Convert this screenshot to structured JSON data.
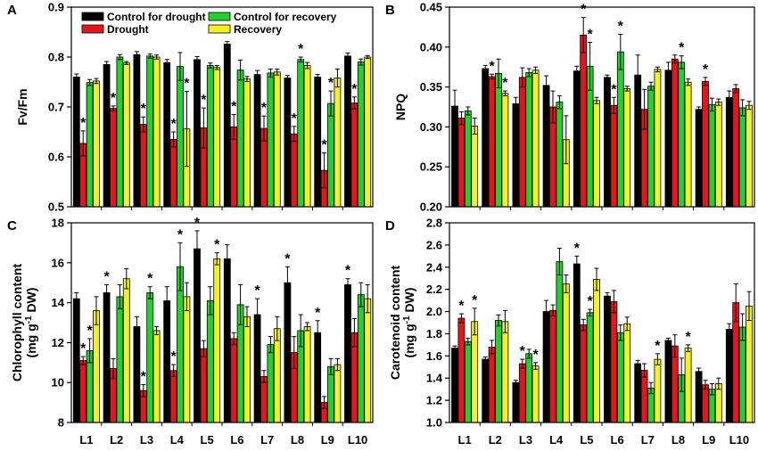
{
  "legend_position": "top-left of panel A",
  "colors": {
    "control_drought": "#000000",
    "drought": "#e8141b",
    "control_recovery": "#22d12b",
    "recovery": "#f5f020"
  },
  "chart_data": [
    {
      "type": "bar",
      "panel": "A",
      "ylabel": "Fv/Fm",
      "ylim": [
        0.5,
        0.9
      ],
      "yticks": [
        "0.5",
        "0.6",
        "0.7",
        "0.8",
        "0.9"
      ],
      "categories": [
        "L1",
        "L2",
        "L3",
        "L4",
        "L5",
        "L6",
        "L7",
        "L8",
        "L9",
        "L10"
      ],
      "show_x_labels": false,
      "legend": [
        "Control for drought",
        "Drought",
        "Control for recovery",
        "Recovery"
      ],
      "series": [
        {
          "name": "Control for drought",
          "values": [
            0.76,
            0.785,
            0.805,
            0.789,
            0.795,
            0.826,
            0.765,
            0.758,
            0.76,
            0.802
          ],
          "errors": [
            0.006,
            0.006,
            0.006,
            0.006,
            0.006,
            0.005,
            0.008,
            0.005,
            0.005,
            0.006
          ]
        },
        {
          "name": "Drought",
          "values": [
            0.627,
            0.697,
            0.665,
            0.635,
            0.658,
            0.66,
            0.657,
            0.646,
            0.573,
            0.708
          ],
          "errors": [
            0.025,
            0.005,
            0.015,
            0.015,
            0.04,
            0.025,
            0.025,
            0.015,
            0.035,
            0.012
          ]
        },
        {
          "name": "Control for recovery",
          "values": [
            0.749,
            0.8,
            0.802,
            0.781,
            0.783,
            0.774,
            0.768,
            0.795,
            0.707,
            0.79
          ],
          "errors": [
            0.006,
            0.005,
            0.004,
            0.028,
            0.005,
            0.02,
            0.008,
            0.005,
            0.025,
            0.006
          ]
        },
        {
          "name": "Recovery",
          "values": [
            0.752,
            0.788,
            0.8,
            0.656,
            0.779,
            0.756,
            0.77,
            0.783,
            0.758,
            0.8
          ],
          "errors": [
            0.005,
            0.003,
            0.004,
            0.075,
            0.004,
            0.005,
            0.006,
            0.006,
            0.018,
            0.003
          ]
        }
      ],
      "significance": [
        {
          "category": "L1",
          "series": "Drought",
          "label": "*"
        },
        {
          "category": "L2",
          "series": "Drought",
          "label": "*"
        },
        {
          "category": "L3",
          "series": "Drought",
          "label": "*"
        },
        {
          "category": "L4",
          "series": "Drought",
          "label": "*"
        },
        {
          "category": "L4",
          "series": "Recovery",
          "label": "*"
        },
        {
          "category": "L5",
          "series": "Drought",
          "label": "*"
        },
        {
          "category": "L6",
          "series": "Drought",
          "label": "*"
        },
        {
          "category": "L7",
          "series": "Drought",
          "label": "*"
        },
        {
          "category": "L8",
          "series": "Drought",
          "label": "*"
        },
        {
          "category": "L8",
          "series": "Control for recovery",
          "label": "*"
        },
        {
          "category": "L9",
          "series": "Drought",
          "label": "*"
        },
        {
          "category": "L9",
          "series": "Control for recovery",
          "label": "*"
        },
        {
          "category": "L10",
          "series": "Drought",
          "label": "*"
        }
      ]
    },
    {
      "type": "bar",
      "panel": "B",
      "ylabel": "NPQ",
      "ylim": [
        0.2,
        0.45
      ],
      "yticks": [
        "0.20",
        "0.25",
        "0.30",
        "0.35",
        "0.40",
        "0.45"
      ],
      "categories": [
        "L1",
        "L2",
        "L3",
        "L4",
        "L5",
        "L6",
        "L7",
        "L8",
        "L9",
        "L10"
      ],
      "show_x_labels": false,
      "series": [
        {
          "name": "Control for drought",
          "values": [
            0.326,
            0.373,
            0.329,
            0.352,
            0.37,
            0.362,
            0.365,
            0.371,
            0.322,
            0.337
          ],
          "errors": [
            0.02,
            0.004,
            0.008,
            0.012,
            0.006,
            0.003,
            0.025,
            0.01,
            0.003,
            0.008
          ]
        },
        {
          "name": "Drought",
          "values": [
            0.311,
            0.363,
            0.362,
            0.325,
            0.415,
            0.327,
            0.322,
            0.385,
            0.357,
            0.348
          ],
          "errors": [
            0.008,
            0.003,
            0.012,
            0.02,
            0.022,
            0.01,
            0.025,
            0.005,
            0.005,
            0.005
          ]
        },
        {
          "name": "Control for recovery",
          "values": [
            0.32,
            0.367,
            0.368,
            0.331,
            0.376,
            0.394,
            0.351,
            0.381,
            0.328,
            0.324
          ],
          "errors": [
            0.005,
            0.018,
            0.005,
            0.008,
            0.03,
            0.022,
            0.005,
            0.008,
            0.008,
            0.01
          ]
        },
        {
          "name": "Recovery",
          "values": [
            0.301,
            0.342,
            0.371,
            0.284,
            0.333,
            0.348,
            0.372,
            0.356,
            0.331,
            0.327
          ],
          "errors": [
            0.01,
            0.003,
            0.004,
            0.03,
            0.004,
            0.003,
            0.003,
            0.004,
            0.004,
            0.005
          ]
        }
      ],
      "significance": [
        {
          "category": "L2",
          "series": "Drought",
          "label": "*"
        },
        {
          "category": "L2",
          "series": "Recovery",
          "label": "*"
        },
        {
          "category": "L5",
          "series": "Drought",
          "label": "*"
        },
        {
          "category": "L5",
          "series": "Control for recovery",
          "label": "*"
        },
        {
          "category": "L6",
          "series": "Drought",
          "label": "*"
        },
        {
          "category": "L6",
          "series": "Control for recovery",
          "label": "*"
        },
        {
          "category": "L8",
          "series": "Control for recovery",
          "label": "*"
        },
        {
          "category": "L9",
          "series": "Drought",
          "label": "*"
        }
      ]
    },
    {
      "type": "bar",
      "panel": "C",
      "ylabel": "Chlorophyll content",
      "ylabel_unit": "(mg g-1 DW)",
      "ylabel_unit_parts": [
        "(mg g",
        "-1",
        " DW)"
      ],
      "ylim": [
        8,
        18
      ],
      "yticks": [
        "8",
        "10",
        "12",
        "14",
        "16",
        "18"
      ],
      "categories": [
        "L1",
        "L2",
        "L3",
        "L4",
        "L5",
        "L6",
        "L7",
        "L8",
        "L9",
        "L10"
      ],
      "show_x_labels": true,
      "series": [
        {
          "name": "Control for drought",
          "values": [
            14.2,
            14.5,
            12.8,
            14.1,
            16.7,
            16.2,
            13.4,
            15.0,
            12.5,
            14.9
          ],
          "errors": [
            0.3,
            0.4,
            0.5,
            0.7,
            0.9,
            0.7,
            0.8,
            0.8,
            0.6,
            0.3
          ]
        },
        {
          "name": "Drought",
          "values": [
            11.1,
            10.7,
            9.6,
            10.6,
            11.7,
            12.2,
            10.3,
            11.5,
            9.0,
            12.5
          ],
          "errors": [
            0.2,
            0.5,
            0.3,
            0.3,
            0.4,
            0.3,
            0.3,
            0.8,
            0.3,
            0.7
          ]
        },
        {
          "name": "Control for recovery",
          "values": [
            11.6,
            14.3,
            14.5,
            15.8,
            14.1,
            13.9,
            11.9,
            12.6,
            10.8,
            14.4
          ],
          "errors": [
            0.6,
            0.6,
            0.3,
            1.2,
            0.7,
            1.0,
            0.4,
            0.8,
            0.4,
            0.6
          ]
        },
        {
          "name": "Recovery",
          "values": [
            13.6,
            15.2,
            12.6,
            14.3,
            16.2,
            13.3,
            12.7,
            12.8,
            10.9,
            14.2
          ],
          "errors": [
            0.7,
            0.5,
            0.2,
            0.7,
            0.3,
            0.5,
            0.6,
            0.2,
            0.3,
            0.7
          ]
        }
      ],
      "significance": [
        {
          "category": "L1",
          "series": "Drought",
          "label": "*"
        },
        {
          "category": "L1",
          "series": "Control for recovery",
          "label": "*"
        },
        {
          "category": "L2",
          "series": "Control for drought",
          "label": "*"
        },
        {
          "category": "L3",
          "series": "Drought",
          "label": "*"
        },
        {
          "category": "L3",
          "series": "Control for recovery",
          "label": "*"
        },
        {
          "category": "L4",
          "series": "Drought",
          "label": "*"
        },
        {
          "category": "L4",
          "series": "Control for recovery",
          "label": "*"
        },
        {
          "category": "L5",
          "series": "Control for drought",
          "label": "*"
        },
        {
          "category": "L5",
          "series": "Recovery",
          "label": "*"
        },
        {
          "category": "L7",
          "series": "Control for drought",
          "label": "*"
        },
        {
          "category": "L8",
          "series": "Control for drought",
          "label": "*"
        },
        {
          "category": "L9",
          "series": "Control for drought",
          "label": "*"
        },
        {
          "category": "L10",
          "series": "Control for drought",
          "label": "*"
        }
      ]
    },
    {
      "type": "bar",
      "panel": "D",
      "ylabel": "Carotenoid content",
      "ylabel_unit": "(mg g-1 DW)",
      "ylabel_unit_parts": [
        "(mg g",
        "-1",
        " DW)"
      ],
      "ylim": [
        1.0,
        2.8
      ],
      "yticks": [
        "1.0",
        "1.2",
        "1.4",
        "1.6",
        "1.8",
        "2.0",
        "2.2",
        "2.4",
        "2.6",
        "2.8"
      ],
      "categories": [
        "L1",
        "L2",
        "L3",
        "L4",
        "L5",
        "L6",
        "L7",
        "L8",
        "L9",
        "L10"
      ],
      "show_x_labels": true,
      "series": [
        {
          "name": "Control for drought",
          "values": [
            1.67,
            1.57,
            1.36,
            2.0,
            2.43,
            2.14,
            1.53,
            1.74,
            1.46,
            1.84
          ],
          "errors": [
            0.02,
            0.02,
            0.02,
            0.1,
            0.07,
            0.03,
            0.03,
            0.02,
            0.03,
            0.05
          ]
        },
        {
          "name": "Drought",
          "values": [
            1.94,
            1.68,
            1.53,
            2.01,
            1.88,
            2.09,
            1.47,
            1.69,
            1.34,
            2.08
          ],
          "errors": [
            0.04,
            0.06,
            0.04,
            0.05,
            0.05,
            0.1,
            0.06,
            0.1,
            0.04,
            0.17
          ]
        },
        {
          "name": "Control for recovery",
          "values": [
            1.73,
            1.92,
            1.62,
            2.45,
            1.99,
            1.81,
            1.31,
            1.43,
            1.3,
            1.86
          ],
          "errors": [
            0.03,
            0.05,
            0.04,
            0.12,
            0.03,
            0.07,
            0.05,
            0.15,
            0.05,
            0.12
          ]
        },
        {
          "name": "Recovery",
          "values": [
            1.91,
            1.91,
            1.51,
            2.25,
            2.29,
            1.89,
            1.57,
            1.67,
            1.35,
            2.05
          ],
          "errors": [
            0.12,
            0.1,
            0.03,
            0.08,
            0.1,
            0.06,
            0.05,
            0.03,
            0.05,
            0.13
          ]
        }
      ],
      "significance": [
        {
          "category": "L1",
          "series": "Drought",
          "label": "*"
        },
        {
          "category": "L1",
          "series": "Recovery",
          "label": "*"
        },
        {
          "category": "L3",
          "series": "Drought",
          "label": "*"
        },
        {
          "category": "L3",
          "series": "Recovery",
          "label": "*"
        },
        {
          "category": "L5",
          "series": "Control for drought",
          "label": "*"
        },
        {
          "category": "L5",
          "series": "Control for recovery",
          "label": "*"
        },
        {
          "category": "L7",
          "series": "Recovery",
          "label": "*"
        },
        {
          "category": "L8",
          "series": "Recovery",
          "label": "*"
        }
      ]
    }
  ]
}
